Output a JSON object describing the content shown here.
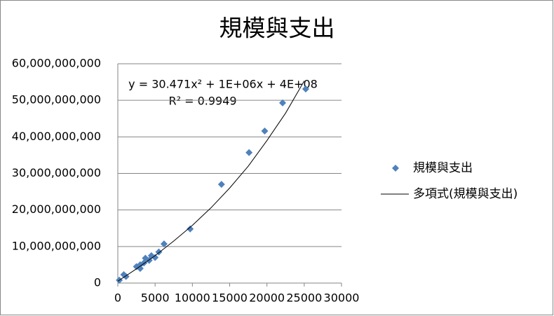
{
  "chart_data": {
    "type": "scatter",
    "title": "規模與支出",
    "annotations": [
      "y = 30.471x² + 1E+06x + 4E+08",
      "R² = 0.9949"
    ],
    "xlim": [
      0,
      30000
    ],
    "xticks": [
      0,
      5000,
      10000,
      15000,
      20000,
      25000,
      30000
    ],
    "ylim": [
      0,
      60000000000
    ],
    "yticks": [
      0,
      {
        "value": 10000000000,
        "label": "10,000,000,000"
      },
      {
        "value": 20000000000,
        "label": "20,000,000,000"
      },
      {
        "value": 30000000000,
        "label": "30,000,000,000"
      },
      {
        "value": 40000000000,
        "label": "40,000,000,000"
      },
      {
        "value": 50000000000,
        "label": "50,000,000,000"
      },
      {
        "value": 60000000000,
        "label": "60,000,000,000"
      }
    ],
    "grid": true,
    "legend": "right",
    "series": [
      {
        "name": "規模與支出",
        "type": "scatter",
        "color": "#4f81bd",
        "x": [
          200,
          800,
          1100,
          2500,
          3000,
          3000,
          3500,
          3700,
          4200,
          4500,
          5000,
          5500,
          6200,
          9700,
          13900,
          17600,
          19700,
          22100,
          25200
        ],
        "values": [
          800000000,
          2300000000,
          1800000000,
          4500000000,
          5000000000,
          4000000000,
          5500000000,
          6800000000,
          6200000000,
          7500000000,
          7000000000,
          8500000000,
          10700000000,
          14800000000,
          27000000000,
          35700000000,
          41600000000,
          49300000000,
          53100000000
        ]
      },
      {
        "name": "多項式(規模與支出)",
        "type": "line",
        "color": "#000000",
        "x": [
          0,
          2500,
          5000,
          7500,
          10000,
          12500,
          15000,
          17500,
          20000,
          22500,
          25000
        ],
        "values": [
          500000000,
          3900000000,
          7500000000,
          11500000000,
          15800000000,
          20600000000,
          26000000000,
          32000000000,
          39000000000,
          46500000000,
          55300000000
        ]
      }
    ]
  }
}
